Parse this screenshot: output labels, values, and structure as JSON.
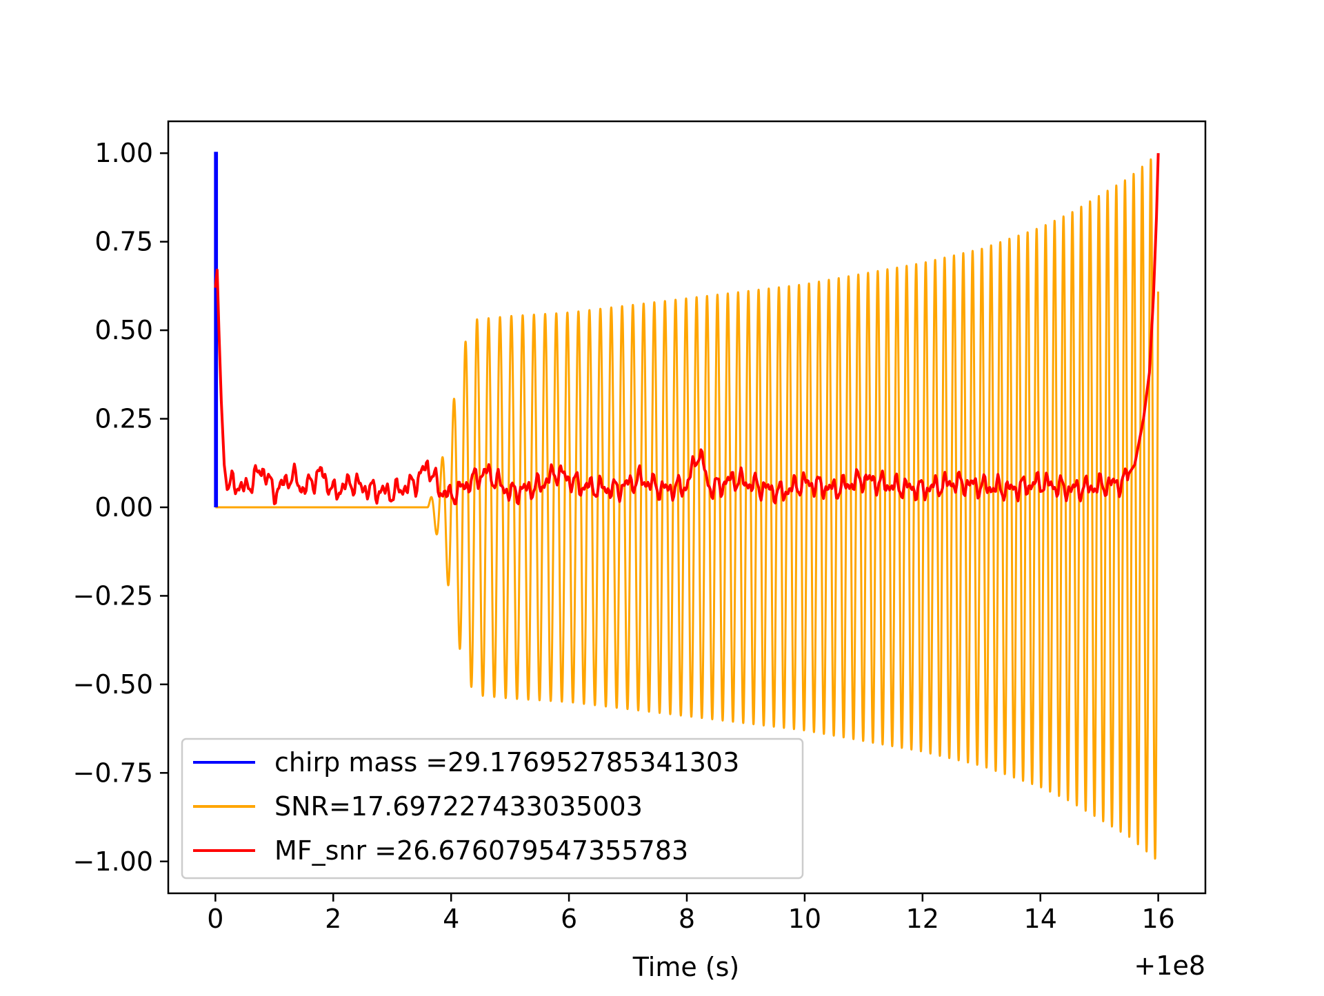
{
  "chart_data": {
    "type": "line",
    "title": "",
    "xlabel": "Time (s)",
    "ylabel": "",
    "x_offset_label": "+1e8",
    "xlim": [
      -0.8,
      16.8
    ],
    "ylim": [
      -1.09,
      1.09
    ],
    "grid": false,
    "legend_position": "lower-left",
    "x_ticks": [
      0,
      2,
      4,
      6,
      8,
      10,
      12,
      14,
      16
    ],
    "x_tick_labels": [
      "0",
      "2",
      "4",
      "6",
      "8",
      "10",
      "12",
      "14",
      "16"
    ],
    "y_ticks": [
      1.0,
      0.75,
      0.5,
      0.25,
      0.0,
      -0.25,
      -0.5,
      -0.75,
      -1.0
    ],
    "y_tick_labels": [
      "1.00",
      "0.75",
      "0.50",
      "0.25",
      "0.00",
      "−0.25",
      "−0.50",
      "−0.75",
      "−1.00"
    ],
    "series": [
      {
        "name": "chirp mass =29.176952785341303",
        "color": "#0000ff",
        "points": [
          [
            0.0,
            0.0
          ],
          [
            0.0,
            1.0
          ],
          [
            0.02,
            1.0
          ],
          [
            0.02,
            0.0
          ]
        ]
      },
      {
        "name": "SNR=17.697227433035003",
        "color": "#ffa500",
        "waveform": {
          "x_start": 0.0,
          "signal_start": 3.6,
          "x_end": 16.0,
          "envelope": [
            [
              3.6,
              0.0
            ],
            [
              3.8,
              0.1
            ],
            [
              4.0,
              0.26
            ],
            [
              4.2,
              0.45
            ],
            [
              4.4,
              0.53
            ],
            [
              5.0,
              0.54
            ],
            [
              6.0,
              0.55
            ],
            [
              7.0,
              0.57
            ],
            [
              8.0,
              0.59
            ],
            [
              9.0,
              0.61
            ],
            [
              10.0,
              0.63
            ],
            [
              11.0,
              0.66
            ],
            [
              12.0,
              0.69
            ],
            [
              13.0,
              0.73
            ],
            [
              14.0,
              0.79
            ],
            [
              14.5,
              0.83
            ],
            [
              15.0,
              0.88
            ],
            [
              15.5,
              0.93
            ],
            [
              16.0,
              1.0
            ]
          ],
          "cycles_per_second": [
            [
              3.6,
              5.0
            ],
            [
              8.0,
              5.6
            ],
            [
              12.0,
              6.2
            ],
            [
              16.0,
              6.9
            ]
          ]
        }
      },
      {
        "name": "MF_snr =26.676079547355783",
        "color": "#ff0000",
        "points": [
          [
            0.0,
            0.62
          ],
          [
            0.03,
            0.67
          ],
          [
            0.06,
            0.5
          ],
          [
            0.1,
            0.3
          ],
          [
            0.15,
            0.12
          ],
          [
            0.2,
            0.05
          ],
          [
            0.3,
            0.07
          ],
          [
            0.5,
            0.05
          ],
          [
            0.8,
            0.11
          ],
          [
            1.0,
            0.04
          ],
          [
            1.3,
            0.09
          ],
          [
            1.5,
            0.05
          ],
          [
            1.8,
            0.1
          ],
          [
            2.0,
            0.04
          ],
          [
            2.3,
            0.07
          ],
          [
            2.6,
            0.05
          ],
          [
            3.0,
            0.04
          ],
          [
            3.4,
            0.07
          ],
          [
            3.6,
            0.12
          ],
          [
            3.8,
            0.05
          ],
          [
            4.0,
            0.03
          ],
          [
            4.3,
            0.07
          ],
          [
            4.6,
            0.1
          ],
          [
            5.0,
            0.04
          ],
          [
            5.5,
            0.06
          ],
          [
            5.8,
            0.1
          ],
          [
            6.2,
            0.06
          ],
          [
            6.8,
            0.05
          ],
          [
            7.2,
            0.08
          ],
          [
            7.6,
            0.05
          ],
          [
            8.0,
            0.06
          ],
          [
            8.2,
            0.16
          ],
          [
            8.4,
            0.05
          ],
          [
            8.8,
            0.08
          ],
          [
            9.2,
            0.06
          ],
          [
            9.6,
            0.04
          ],
          [
            10.0,
            0.07
          ],
          [
            10.5,
            0.05
          ],
          [
            11.0,
            0.08
          ],
          [
            11.5,
            0.06
          ],
          [
            12.0,
            0.05
          ],
          [
            12.5,
            0.07
          ],
          [
            13.0,
            0.06
          ],
          [
            13.5,
            0.05
          ],
          [
            14.0,
            0.07
          ],
          [
            14.5,
            0.05
          ],
          [
            15.0,
            0.06
          ],
          [
            15.4,
            0.07
          ],
          [
            15.6,
            0.12
          ],
          [
            15.75,
            0.25
          ],
          [
            15.85,
            0.38
          ],
          [
            15.92,
            0.6
          ],
          [
            15.97,
            0.82
          ],
          [
            16.0,
            1.0
          ]
        ]
      }
    ]
  },
  "colors": {
    "chirp_mass": "#0000ff",
    "snr": "#ffa500",
    "mf_snr": "#ff0000",
    "axes": "#000000",
    "legend_border": "#cccccc"
  }
}
